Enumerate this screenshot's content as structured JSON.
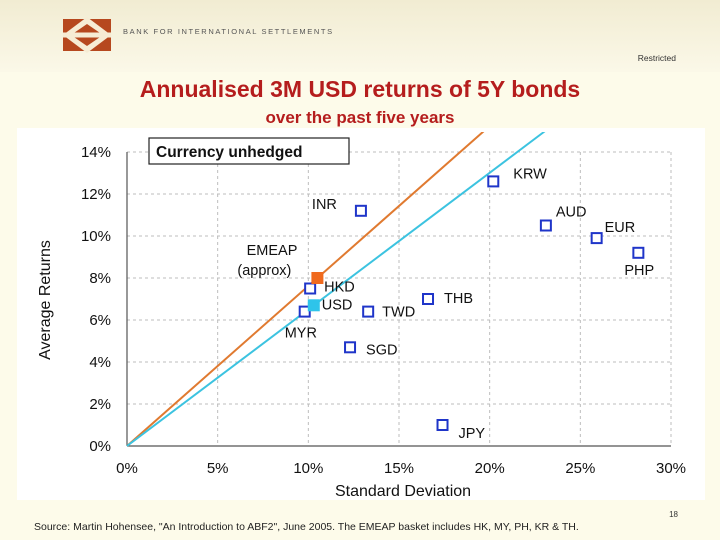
{
  "header": {
    "org_name": "BANK FOR INTERNATIONAL SETTLEMENTS",
    "classification": "Restricted"
  },
  "slide": {
    "title": "Annualised 3M USD returns of 5Y bonds",
    "subtitle": "over the past five years",
    "page_number": "18",
    "source": "Source: Martin Hohensee, \"An Introduction to ABF2\", June 2005. The EMEAP basket includes HK, MY, PH, KR & TH."
  },
  "colors": {
    "title": "#b51d1d",
    "marker_outline": "#1f35c9",
    "emeap_marker": "#f06a1e",
    "usd_marker": "#2ec4ea",
    "emeap_line": "#e07a30",
    "usd_line": "#3cc3e0",
    "background": "#fdfbea"
  },
  "chart_data": {
    "type": "scatter",
    "title": "Currency unhedged",
    "xlabel": "Standard Deviation",
    "ylabel": "Average Returns",
    "xlim": [
      0,
      30
    ],
    "ylim": [
      0,
      14
    ],
    "x_ticks": [
      "0%",
      "5%",
      "10%",
      "15%",
      "20%",
      "25%",
      "30%"
    ],
    "y_ticks": [
      "0%",
      "2%",
      "4%",
      "6%",
      "8%",
      "10%",
      "12%",
      "14%"
    ],
    "grid": true,
    "legend": "top-left",
    "points": [
      {
        "label": "KRW",
        "x": 20.2,
        "y": 12.6
      },
      {
        "label": "INR",
        "x": 12.9,
        "y": 11.2
      },
      {
        "label": "AUD",
        "x": 23.1,
        "y": 10.5
      },
      {
        "label": "EUR",
        "x": 25.9,
        "y": 9.9
      },
      {
        "label": "PHP",
        "x": 28.2,
        "y": 9.2
      },
      {
        "label": "HKD",
        "x": 10.1,
        "y": 7.5
      },
      {
        "label": "THB",
        "x": 16.6,
        "y": 7.0
      },
      {
        "label": "TWD",
        "x": 13.3,
        "y": 6.4
      },
      {
        "label": "MYR",
        "x": 9.8,
        "y": 6.4
      },
      {
        "label": "SGD",
        "x": 12.3,
        "y": 4.7
      },
      {
        "label": "JPY",
        "x": 17.4,
        "y": 1.0
      }
    ],
    "highlight_points": [
      {
        "label": "EMEAP",
        "label2": "(approx)",
        "x": 10.5,
        "y": 8.0
      },
      {
        "label": "USD",
        "x": 10.3,
        "y": 6.7
      }
    ],
    "reference_lines": [
      {
        "name": "EMEAP",
        "through": [
          10.5,
          8.0
        ]
      },
      {
        "name": "USD",
        "through": [
          10.3,
          6.7
        ]
      }
    ]
  }
}
